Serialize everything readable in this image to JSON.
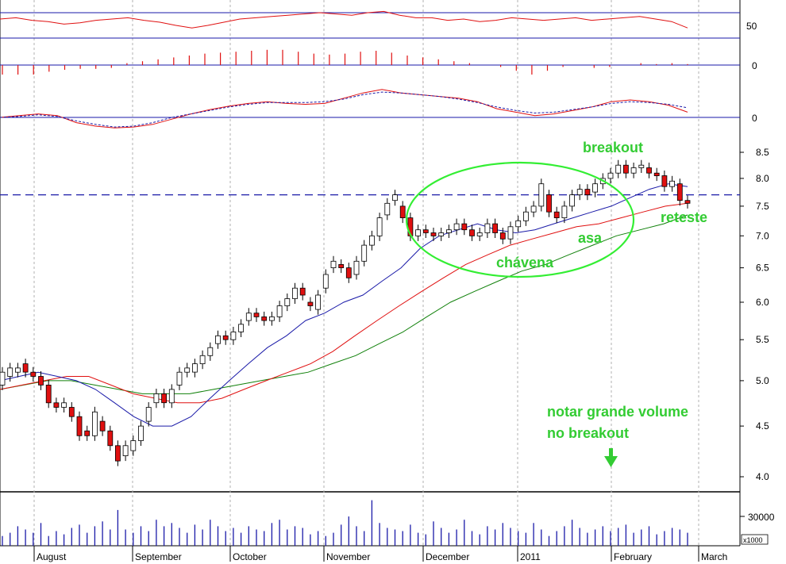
{
  "colors": {
    "up_candle": "#ffffff",
    "down_candle": "#e01010",
    "candle_outline": "#000000",
    "sma_short": "#1a1aa8",
    "sma_mid": "#e01010",
    "sma_long": "#10800a",
    "annotation": "#33cc33",
    "resistance": "#1a1aa8",
    "grid": "#b0b0b0",
    "volume": "#1a1aa8"
  },
  "chart_data": [
    {
      "type": "line",
      "panel": "rsi-indicator",
      "y_tick_labels": [
        "50"
      ],
      "reference_lines": [
        70,
        50,
        30
      ],
      "series": [
        {
          "values": [
            60,
            62,
            58,
            56,
            52,
            54,
            58,
            60,
            62,
            58,
            55,
            50,
            46,
            50,
            55,
            60,
            62,
            64,
            66,
            68,
            70,
            68,
            66,
            70,
            72,
            66,
            62,
            62,
            58,
            60,
            56,
            58,
            62,
            60,
            58,
            60,
            62,
            58,
            60,
            62,
            64,
            60,
            56,
            46
          ]
        }
      ]
    },
    {
      "type": "bar",
      "panel": "macd-histogram",
      "y_tick_labels": [
        "0"
      ],
      "series": [
        {
          "values": [
            -1,
            -1,
            -1,
            -0.7,
            -0.5,
            -0.4,
            -0.4,
            -0.3,
            0.2,
            0.4,
            0.6,
            0.8,
            1,
            1.2,
            1.3,
            1.4,
            1.5,
            1.6,
            1.6,
            1.4,
            1.2,
            1.1,
            1.2,
            1.4,
            1.5,
            1.3,
            1.0,
            0.8,
            0.6,
            0.4,
            0.2,
            0,
            -0.2,
            -0.6,
            -1,
            -0.6,
            -0.2,
            0,
            -0.3,
            -0.2,
            0,
            0.2,
            0.1,
            0.2,
            0.1
          ]
        }
      ]
    },
    {
      "type": "line",
      "panel": "macd-lines",
      "y_tick_labels": [
        "0"
      ],
      "series": [
        {
          "values": [
            0,
            0.2,
            0.4,
            0.2,
            -0.6,
            -1.0,
            -1.2,
            -1.1,
            -0.8,
            -0.2,
            0.4,
            0.9,
            1.3,
            1.6,
            1.8,
            1.6,
            1.5,
            1.6,
            2.2,
            2.8,
            3.2,
            2.8,
            2.6,
            2.4,
            2.2,
            1.8,
            1.0,
            0.6,
            0.2,
            0.4,
            0.8,
            1.2,
            1.8,
            2.0,
            1.8,
            1.4,
            0.6
          ]
        },
        {
          "values": [
            0,
            0.1,
            0.3,
            0.1,
            -0.4,
            -0.8,
            -1.1,
            -1.0,
            -0.6,
            0,
            0.4,
            0.8,
            1.2,
            1.5,
            1.7,
            1.7,
            1.7,
            1.8,
            2.1,
            2.6,
            2.9,
            2.8,
            2.6,
            2.4,
            2.1,
            1.7,
            1.2,
            0.8,
            0.5,
            0.6,
            0.9,
            1.2,
            1.6,
            1.8,
            1.7,
            1.5,
            1.1
          ]
        }
      ]
    },
    {
      "type": "candlestick",
      "panel": "price",
      "scale": "log",
      "ylim": [
        3.85,
        8.75
      ],
      "y_tick_labels": [
        "8.5",
        "8.0",
        "7.5",
        "7.0",
        "6.5",
        "6.0",
        "5.5",
        "5.0",
        "4.5",
        "4.0"
      ],
      "y_ticks": [
        8.5,
        8.0,
        7.5,
        7.0,
        6.5,
        6.0,
        5.5,
        5.0,
        4.5,
        4.0
      ],
      "x_labels": [
        "August",
        "September",
        "October",
        "November",
        "December",
        "2011",
        "February",
        "March"
      ],
      "resistance": 7.7,
      "candles": [
        [
          4.95,
          5.1
        ],
        [
          5.05,
          5.15
        ],
        [
          5.1,
          5.15
        ],
        [
          5.2,
          5.1
        ],
        [
          5.1,
          5.05
        ],
        [
          5.05,
          4.95
        ],
        [
          4.95,
          4.75
        ],
        [
          4.75,
          4.7
        ],
        [
          4.7,
          4.75
        ],
        [
          4.7,
          4.6
        ],
        [
          4.6,
          4.4
        ],
        [
          4.45,
          4.4
        ],
        [
          4.4,
          4.65
        ],
        [
          4.55,
          4.45
        ],
        [
          4.45,
          4.3
        ],
        [
          4.3,
          4.15
        ],
        [
          4.2,
          4.3
        ],
        [
          4.25,
          4.35
        ],
        [
          4.35,
          4.5
        ],
        [
          4.55,
          4.7
        ],
        [
          4.75,
          4.85
        ],
        [
          4.85,
          4.75
        ],
        [
          4.75,
          4.9
        ],
        [
          4.95,
          5.1
        ],
        [
          5.1,
          5.15
        ],
        [
          5.1,
          5.2
        ],
        [
          5.2,
          5.3
        ],
        [
          5.3,
          5.4
        ],
        [
          5.45,
          5.55
        ],
        [
          5.55,
          5.5
        ],
        [
          5.5,
          5.6
        ],
        [
          5.6,
          5.7
        ],
        [
          5.75,
          5.85
        ],
        [
          5.85,
          5.8
        ],
        [
          5.8,
          5.75
        ],
        [
          5.75,
          5.8
        ],
        [
          5.8,
          5.95
        ],
        [
          5.95,
          6.05
        ],
        [
          6.05,
          6.2
        ],
        [
          6.2,
          6.1
        ],
        [
          6.0,
          5.95
        ],
        [
          5.9,
          6.1
        ],
        [
          6.2,
          6.4
        ],
        [
          6.5,
          6.6
        ],
        [
          6.55,
          6.5
        ],
        [
          6.5,
          6.35
        ],
        [
          6.4,
          6.6
        ],
        [
          6.6,
          6.85
        ],
        [
          6.85,
          7.0
        ],
        [
          7.0,
          7.3
        ],
        [
          7.35,
          7.55
        ],
        [
          7.6,
          7.7
        ],
        [
          7.5,
          7.3
        ],
        [
          7.3,
          7.0
        ],
        [
          7.0,
          7.1
        ],
        [
          7.1,
          7.05
        ],
        [
          7.05,
          7.0
        ],
        [
          7.0,
          7.05
        ],
        [
          7.05,
          7.1
        ],
        [
          7.1,
          7.2
        ],
        [
          7.2,
          7.1
        ],
        [
          7.1,
          7.0
        ],
        [
          7.0,
          7.05
        ],
        [
          7.05,
          7.2
        ],
        [
          7.2,
          7.05
        ],
        [
          7.05,
          6.95
        ],
        [
          6.95,
          7.15
        ],
        [
          7.15,
          7.25
        ],
        [
          7.25,
          7.4
        ],
        [
          7.4,
          7.5
        ],
        [
          7.5,
          7.9
        ],
        [
          7.7,
          7.4
        ],
        [
          7.4,
          7.3
        ],
        [
          7.3,
          7.5
        ],
        [
          7.5,
          7.7
        ],
        [
          7.7,
          7.8
        ],
        [
          7.8,
          7.7
        ],
        [
          7.75,
          7.9
        ],
        [
          7.9,
          8.0
        ],
        [
          8.0,
          8.1
        ],
        [
          8.1,
          8.25
        ],
        [
          8.25,
          8.1
        ],
        [
          8.1,
          8.2
        ],
        [
          8.2,
          8.25
        ],
        [
          8.2,
          8.1
        ],
        [
          8.1,
          8.05
        ],
        [
          8.05,
          7.85
        ],
        [
          7.85,
          7.95
        ],
        [
          7.9,
          7.6
        ],
        [
          7.6,
          7.55
        ]
      ],
      "series": [
        {
          "values": [
            5.0,
            5.05,
            5.1,
            5.05,
            5.0,
            4.9,
            4.75,
            4.6,
            4.5,
            4.5,
            4.6,
            4.8,
            5.0,
            5.2,
            5.4,
            5.55,
            5.75,
            5.85,
            6.0,
            6.1,
            6.3,
            6.5,
            6.8,
            7.0,
            7.1,
            7.2,
            7.1,
            7.05,
            7.1,
            7.2,
            7.3,
            7.4,
            7.5,
            7.65,
            7.8,
            7.9,
            7.85
          ]
        },
        {
          "values": [
            4.9,
            4.95,
            5.0,
            5.05,
            5.05,
            4.95,
            4.85,
            4.8,
            4.75,
            4.75,
            4.8,
            4.9,
            5.0,
            5.1,
            5.2,
            5.35,
            5.55,
            5.75,
            5.95,
            6.15,
            6.35,
            6.55,
            6.7,
            6.85,
            6.95,
            7.05,
            7.15,
            7.2,
            7.3,
            7.4,
            7.5,
            7.55
          ]
        },
        {
          "values": [
            4.9,
            4.95,
            5.0,
            5.0,
            4.95,
            4.9,
            4.85,
            4.85,
            4.85,
            4.9,
            4.95,
            5.0,
            5.05,
            5.1,
            5.2,
            5.3,
            5.45,
            5.6,
            5.8,
            6.0,
            6.15,
            6.3,
            6.45,
            6.55,
            6.7,
            6.85,
            7.0,
            7.1,
            7.2,
            7.35
          ]
        }
      ]
    },
    {
      "type": "bar",
      "panel": "volume",
      "y_tick_labels": [
        "30000"
      ],
      "y_unit_label": "x1000",
      "series": [
        {
          "values": [
            6,
            8,
            12,
            10,
            8,
            14,
            6,
            9,
            7,
            11,
            13,
            8,
            12,
            15,
            10,
            22,
            10,
            8,
            12,
            9,
            16,
            12,
            14,
            11,
            8,
            13,
            10,
            16,
            12,
            9,
            11,
            8,
            12,
            10,
            9,
            14,
            16,
            10,
            12,
            11,
            7,
            9,
            6,
            8,
            13,
            18,
            12,
            9,
            28,
            14,
            11,
            10,
            9,
            13,
            8,
            7,
            15,
            11,
            8,
            10,
            16,
            9,
            7,
            12,
            10,
            14,
            11,
            9,
            8,
            14,
            10,
            6,
            9,
            12,
            16,
            11,
            8,
            10,
            12,
            9,
            11,
            13,
            8,
            10,
            12,
            7,
            9,
            11,
            10,
            8
          ]
        }
      ]
    }
  ],
  "annotations": {
    "breakout": "breakout",
    "retest": "reteste",
    "handle": "asa",
    "cup": "chávena",
    "volume_note_line1": "notar grande volume",
    "volume_note_line2": "no breakout"
  }
}
